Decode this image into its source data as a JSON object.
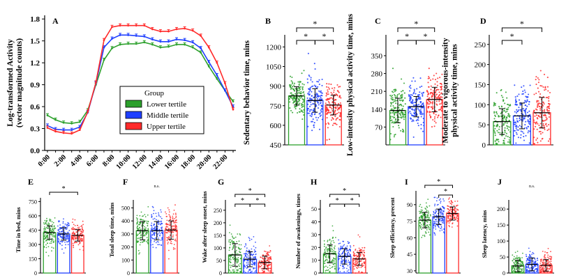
{
  "colors": {
    "lower": "#2ca02c",
    "middle": "#1f3fff",
    "upper": "#ff2a2a"
  },
  "chart_data": [
    {
      "id": "A",
      "type": "line",
      "letter": "A",
      "ylabel_line1": "Log-transformed Activity",
      "ylabel_line2": "(vector magnitude counts)",
      "legend_title": "Group",
      "x": [
        "0:00",
        "1:00",
        "2:00",
        "3:00",
        "4:00",
        "5:00",
        "6:00",
        "7:00",
        "8:00",
        "9:00",
        "10:00",
        "11:00",
        "12:00",
        "13:00",
        "14:00",
        "15:00",
        "16:00",
        "17:00",
        "18:00",
        "19:00",
        "20:00",
        "21:00",
        "22:00",
        "23:00"
      ],
      "xticks": [
        "0:00",
        "2:00",
        "4:00",
        "6:00",
        "8:00",
        "10:00",
        "12:00",
        "14:00",
        "16:00",
        "18:00",
        "20:00",
        "22:00"
      ],
      "yticks": [
        "0.0",
        "0.3",
        "0.6",
        "0.9",
        "1.2",
        "1.5",
        "1.8"
      ],
      "ylim": [
        0,
        1.85
      ],
      "series": [
        {
          "key": "lower",
          "name": "Lower tertile",
          "values": [
            0.48,
            0.42,
            0.38,
            0.37,
            0.39,
            0.55,
            0.9,
            1.24,
            1.4,
            1.45,
            1.46,
            1.46,
            1.48,
            1.45,
            1.41,
            1.42,
            1.45,
            1.45,
            1.41,
            1.34,
            1.15,
            0.98,
            0.82,
            0.67
          ]
        },
        {
          "key": "middle",
          "name": "Middle tertile",
          "values": [
            0.34,
            0.29,
            0.28,
            0.28,
            0.32,
            0.52,
            0.92,
            1.41,
            1.53,
            1.58,
            1.58,
            1.57,
            1.56,
            1.52,
            1.49,
            1.49,
            1.52,
            1.51,
            1.48,
            1.4,
            1.21,
            1.03,
            0.82,
            0.6
          ]
        },
        {
          "key": "upper",
          "name": "Upper tertile",
          "values": [
            0.31,
            0.26,
            0.24,
            0.23,
            0.28,
            0.53,
            0.93,
            1.51,
            1.69,
            1.71,
            1.71,
            1.71,
            1.71,
            1.66,
            1.63,
            1.63,
            1.66,
            1.67,
            1.64,
            1.57,
            1.41,
            1.2,
            0.92,
            0.56
          ]
        }
      ]
    },
    {
      "id": "B",
      "type": "bar",
      "letter": "B",
      "ylabel": [
        "Sedentary behavior time, mins"
      ],
      "yticks": [
        "450",
        "600",
        "750",
        "900",
        "1050",
        "1200"
      ],
      "ylim": [
        450,
        1250
      ],
      "categories": [
        "Lower tertile",
        "Middle tertile",
        "Upper tertile"
      ],
      "values": [
        825,
        790,
        755
      ],
      "errors": [
        70,
        90,
        75
      ],
      "sig": [
        {
          "a": 0,
          "b": 1,
          "label": "*"
        },
        {
          "a": 1,
          "b": 2,
          "label": "*"
        },
        {
          "a": 0,
          "b": 2,
          "label": "*"
        }
      ]
    },
    {
      "id": "C",
      "type": "bar",
      "letter": "C",
      "ylabel": [
        "Low-intensity physical activity time, mins"
      ],
      "yticks": [
        "70",
        "140",
        "210",
        "280",
        "350"
      ],
      "ylim": [
        0,
        410
      ],
      "categories": [
        "Lower tertile",
        "Middle tertile",
        "Upper tertile"
      ],
      "values": [
        135,
        150,
        178
      ],
      "errors": [
        48,
        40,
        48
      ],
      "sig": [
        {
          "a": 0,
          "b": 1,
          "label": "*"
        },
        {
          "a": 1,
          "b": 2,
          "label": "*"
        },
        {
          "a": 0,
          "b": 2,
          "label": "*"
        }
      ]
    },
    {
      "id": "D",
      "type": "bar",
      "letter": "D",
      "ylabel": [
        "Moderate to vigorous-intensity",
        "physical activity time, mins"
      ],
      "yticks": [
        "0",
        "50",
        "100",
        "150",
        "200",
        "250"
      ],
      "ylim": [
        0,
        260
      ],
      "categories": [
        "Lower tertile",
        "Middle tertile",
        "Upper tertile"
      ],
      "values": [
        58,
        72,
        80
      ],
      "errors": [
        32,
        32,
        38
      ],
      "sig": [
        {
          "a": 0,
          "b": 1,
          "label": "*"
        },
        {
          "a": 0,
          "b": 2,
          "label": "*"
        }
      ]
    },
    {
      "id": "E",
      "type": "bar",
      "letter": "E",
      "ylabel": [
        "Time in bed, mins"
      ],
      "yticks": [
        "0",
        "150",
        "300",
        "450",
        "600",
        "750"
      ],
      "ylim": [
        0,
        760
      ],
      "categories": [
        "Lower tertile",
        "Middle tertile",
        "Upper tertile"
      ],
      "values": [
        425,
        410,
        395
      ],
      "errors": [
        70,
        65,
        60
      ],
      "sig": [
        {
          "a": 0,
          "b": 2,
          "label": "*"
        }
      ]
    },
    {
      "id": "F",
      "type": "bar",
      "letter": "F",
      "ylabel": [
        "Total sleep time, mins"
      ],
      "yticks": [
        "0",
        "100",
        "200",
        "300",
        "400",
        "500"
      ],
      "ylim": [
        0,
        540
      ],
      "categories": [
        "Lower tertile",
        "Middle tertile",
        "Upper tertile"
      ],
      "values": [
        325,
        325,
        330
      ],
      "errors": [
        70,
        70,
        70
      ],
      "sig": [],
      "ns": "n.s."
    },
    {
      "id": "G",
      "type": "bar",
      "letter": "G",
      "ylabel": [
        "Wake after sleep onset, mins"
      ],
      "yticks": [
        "0",
        "50",
        "100",
        "150",
        "200",
        "250"
      ],
      "ylim": [
        0,
        280
      ],
      "categories": [
        "Lower tertile",
        "Middle tertile",
        "Upper tertile"
      ],
      "values": [
        72,
        55,
        42
      ],
      "errors": [
        45,
        30,
        25
      ],
      "sig": [
        {
          "a": 0,
          "b": 1,
          "label": "*"
        },
        {
          "a": 1,
          "b": 2,
          "label": "*"
        },
        {
          "a": 0,
          "b": 2,
          "label": "*"
        }
      ]
    },
    {
      "id": "H",
      "type": "bar",
      "letter": "H",
      "ylabel": [
        "Number of awakenings, times"
      ],
      "yticks": [
        "0",
        "10",
        "20",
        "30",
        "40",
        "50"
      ],
      "ylim": [
        0,
        55
      ],
      "categories": [
        "Lower tertile",
        "Middle tertile",
        "Upper tertile"
      ],
      "values": [
        15,
        13,
        11
      ],
      "errors": [
        7,
        6,
        5
      ],
      "sig": [
        {
          "a": 0,
          "b": 1,
          "label": "*"
        },
        {
          "a": 1,
          "b": 2,
          "label": "*"
        },
        {
          "a": 0,
          "b": 2,
          "label": "*"
        }
      ]
    },
    {
      "id": "I",
      "type": "bar",
      "letter": "I",
      "ylabel": [
        "Sleep efficiency, precent"
      ],
      "yticks": [
        "30",
        "45",
        "60",
        "75",
        "90"
      ],
      "ylim": [
        28,
        100
      ],
      "categories": [
        "Lower tertile",
        "Middle tertile",
        "Upper tertile"
      ],
      "values": [
        76,
        79,
        82
      ],
      "errors": [
        7,
        7,
        6
      ],
      "sig": [
        {
          "a": 1,
          "b": 2,
          "label": "*"
        },
        {
          "a": 0,
          "b": 2,
          "label": "*"
        }
      ]
    },
    {
      "id": "J",
      "type": "bar",
      "letter": "J",
      "ylabel": [
        "Sleep latency, mins"
      ],
      "yticks": [
        "0",
        "50",
        "100",
        "150",
        "200"
      ],
      "ylim": [
        0,
        220
      ],
      "categories": [
        "Lower tertile",
        "Middle tertile",
        "Upper tertile"
      ],
      "values": [
        22,
        27,
        24
      ],
      "errors": [
        18,
        20,
        18
      ],
      "sig": [],
      "ns": "n.s."
    }
  ]
}
